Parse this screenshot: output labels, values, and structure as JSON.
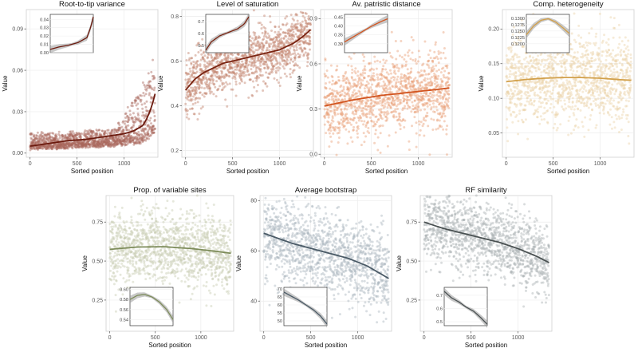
{
  "figure": {
    "shared": {
      "xlabel": "Sorted position",
      "ylabel": "Value",
      "x_ticks": [
        0,
        500,
        1000
      ],
      "x_range": [
        -40,
        1360
      ],
      "n_points": 1300,
      "grid": true
    },
    "panels_order": [
      "root_to_tip",
      "saturation",
      "patristic",
      "comp_het",
      "var_sites",
      "bootstrap",
      "rf"
    ]
  },
  "chart_data": [
    {
      "id": "root_to_tip",
      "type": "scatter",
      "title": "Root-to-tip variance",
      "xlabel": "Sorted position",
      "ylabel": "Value",
      "ylim": [
        -0.003,
        0.104
      ],
      "y_ticks": [
        0.0,
        0.03,
        0.06,
        0.09
      ],
      "tick_decimals": 2,
      "x_range": [
        0,
        1330
      ],
      "trend": {
        "x": [
          0,
          200,
          400,
          600,
          800,
          1000,
          1100,
          1200,
          1250,
          1300,
          1330
        ],
        "y": [
          0.005,
          0.007,
          0.009,
          0.01,
          0.012,
          0.014,
          0.016,
          0.02,
          0.026,
          0.035,
          0.043
        ]
      },
      "noise": {
        "kind": "skew",
        "base": 0.004,
        "spread": 0.01,
        "tail": 0.045,
        "tail_start": 900
      },
      "color": "#6b1a0e",
      "point_color": "#a8675a",
      "inset": {
        "position": "top-left",
        "ylim": [
          0.0,
          0.046
        ],
        "y_ticks": [
          0.0,
          0.01,
          0.02,
          0.03,
          0.04
        ],
        "tick_decimals": 2,
        "x_range": [
          0,
          470
        ],
        "curve": {
          "x": [
            0,
            100,
            200,
            300,
            400,
            440,
            470
          ],
          "y": [
            0.004,
            0.007,
            0.009,
            0.012,
            0.018,
            0.03,
            0.043
          ]
        }
      }
    },
    {
      "id": "saturation",
      "type": "scatter",
      "title": "Level of saturation",
      "xlabel": "Sorted position",
      "ylabel": "Value",
      "ylim": [
        0.17,
        0.83
      ],
      "y_ticks": [
        0.2,
        0.4,
        0.6,
        0.8
      ],
      "tick_decimals": 1,
      "x_range": [
        0,
        1330
      ],
      "trend": {
        "x": [
          0,
          100,
          200,
          400,
          600,
          800,
          1000,
          1150,
          1250,
          1330
        ],
        "y": [
          0.47,
          0.52,
          0.55,
          0.59,
          0.61,
          0.63,
          0.65,
          0.68,
          0.71,
          0.74
        ]
      },
      "noise": {
        "kind": "normal",
        "spread": 0.065
      },
      "color": "#7a2412",
      "point_color": "#c0806a",
      "inset": {
        "position": "top-left",
        "ylim": [
          0.44,
          0.76
        ],
        "y_ticks": [
          0.5,
          0.6,
          0.7
        ],
        "tick_decimals": 1,
        "x_range": [
          0,
          470
        ],
        "curve": {
          "x": [
            0,
            60,
            150,
            250,
            350,
            420,
            470
          ],
          "y": [
            0.46,
            0.53,
            0.58,
            0.61,
            0.64,
            0.68,
            0.74
          ]
        }
      }
    },
    {
      "id": "patristic",
      "type": "scatter",
      "title": "Av. patristic distance",
      "xlabel": "Sorted position",
      "ylabel": "Value",
      "ylim": [
        -0.02,
        0.96
      ],
      "y_ticks": [
        0.0,
        0.3,
        0.6,
        0.9
      ],
      "tick_decimals": 1,
      "x_range": [
        0,
        1330
      ],
      "trend": {
        "x": [
          0,
          300,
          600,
          900,
          1200,
          1330
        ],
        "y": [
          0.32,
          0.36,
          0.39,
          0.41,
          0.43,
          0.44
        ]
      },
      "noise": {
        "kind": "normal",
        "spread": 0.13
      },
      "color": "#d2541f",
      "point_color": "#e8a078",
      "inset": {
        "position": "top-left",
        "ylim": [
          0.25,
          0.465
        ],
        "y_ticks": [
          0.3,
          0.35,
          0.4,
          0.45
        ],
        "tick_decimals": 2,
        "x_range": [
          0,
          470
        ],
        "curve": {
          "x": [
            0,
            100,
            200,
            300,
            400,
            470
          ],
          "y": [
            0.31,
            0.34,
            0.37,
            0.4,
            0.425,
            0.44
          ]
        }
      }
    },
    {
      "id": "comp_het",
      "type": "scatter",
      "title": "Comp. heterogeneity",
      "xlabel": "Sorted position",
      "ylabel": "Value",
      "ylim": [
        0.015,
        0.228
      ],
      "y_ticks": [
        0.05,
        0.1,
        0.15,
        0.2
      ],
      "tick_decimals": 2,
      "x_range": [
        0,
        1330
      ],
      "trend": {
        "x": [
          0,
          200,
          400,
          600,
          800,
          1000,
          1200,
          1330
        ],
        "y": [
          0.124,
          0.127,
          0.129,
          0.13,
          0.13,
          0.129,
          0.127,
          0.126
        ]
      },
      "noise": {
        "kind": "normal",
        "spread": 0.032
      },
      "color": "#d2a04a",
      "point_color": "#ead3a8",
      "inset": {
        "position": "top-left",
        "ylim": [
          0.1165,
          0.1315
        ],
        "y_ticks": [
          0.12,
          0.1225,
          0.125,
          0.1275,
          0.13
        ],
        "tick_decimals": 4,
        "x_range": [
          0,
          470
        ],
        "curve": {
          "x": [
            0,
            80,
            160,
            240,
            320,
            400,
            470
          ],
          "y": [
            0.1235,
            0.127,
            0.1292,
            0.1298,
            0.1285,
            0.1262,
            0.124
          ]
        }
      }
    },
    {
      "id": "var_sites",
      "type": "scatter",
      "title": "Prop. of variable sites",
      "xlabel": "Sorted position",
      "ylabel": "Value",
      "ylim": [
        0.05,
        0.92
      ],
      "y_ticks": [
        0.25,
        0.5,
        0.75
      ],
      "tick_decimals": 2,
      "x_range": [
        0,
        1330
      ],
      "trend": {
        "x": [
          0,
          300,
          600,
          900,
          1200,
          1330
        ],
        "y": [
          0.575,
          0.59,
          0.592,
          0.58,
          0.56,
          0.55
        ]
      },
      "noise": {
        "kind": "normal",
        "spread": 0.12
      },
      "color": "#7d8c5a",
      "point_color": "#c8cdb2",
      "inset": {
        "position": "bottom-left",
        "ylim": [
          0.528,
          0.604
        ],
        "y_ticks": [
          0.54,
          0.56,
          0.58,
          0.6
        ],
        "tick_decimals": 2,
        "x_range": [
          0,
          470
        ],
        "curve": {
          "x": [
            0,
            80,
            160,
            240,
            320,
            400,
            470
          ],
          "y": [
            0.58,
            0.588,
            0.59,
            0.585,
            0.575,
            0.56,
            0.54
          ]
        }
      }
    },
    {
      "id": "bootstrap",
      "type": "scatter",
      "title": "Average bootstrap",
      "xlabel": "Sorted position",
      "ylabel": "Value",
      "ylim": [
        28,
        82
      ],
      "y_ticks": [
        40,
        60,
        80
      ],
      "tick_decimals": 0,
      "x_range": [
        0,
        1330
      ],
      "trend": {
        "x": [
          0,
          300,
          600,
          900,
          1100,
          1330
        ],
        "y": [
          67,
          63,
          60,
          57,
          54,
          49
        ]
      },
      "noise": {
        "kind": "normal",
        "spread": 8.5
      },
      "color": "#4a5a66",
      "point_color": "#aab6bf",
      "inset": {
        "position": "bottom-left",
        "ylim": [
          47,
          71
        ],
        "y_ticks": [
          50,
          55,
          60,
          65,
          70
        ],
        "tick_decimals": 0,
        "x_range": [
          0,
          470
        ],
        "curve": {
          "x": [
            0,
            80,
            160,
            240,
            320,
            400,
            470
          ],
          "y": [
            68,
            65.5,
            63,
            60,
            57,
            53,
            48
          ]
        }
      }
    },
    {
      "id": "rf",
      "type": "scatter",
      "title": "RF similarity",
      "xlabel": "Sorted position",
      "ylabel": "Value",
      "ylim": [
        0.05,
        0.92
      ],
      "y_ticks": [
        0.25,
        0.5,
        0.75
      ],
      "tick_decimals": 2,
      "x_range": [
        0,
        1330
      ],
      "trend": {
        "x": [
          0,
          200,
          400,
          600,
          800,
          1000,
          1200,
          1330
        ],
        "y": [
          0.75,
          0.71,
          0.68,
          0.65,
          0.62,
          0.58,
          0.53,
          0.49
        ]
      },
      "noise": {
        "kind": "normal",
        "spread": 0.115
      },
      "color": "#4a5152",
      "point_color": "#aab2b3",
      "inset": {
        "position": "bottom-left",
        "ylim": [
          0.47,
          0.76
        ],
        "y_ticks": [
          0.5,
          0.6,
          0.7
        ],
        "tick_decimals": 1,
        "x_range": [
          0,
          470
        ],
        "curve": {
          "x": [
            0,
            80,
            160,
            240,
            320,
            400,
            470
          ],
          "y": [
            0.73,
            0.68,
            0.65,
            0.61,
            0.58,
            0.53,
            0.48
          ]
        }
      }
    }
  ]
}
